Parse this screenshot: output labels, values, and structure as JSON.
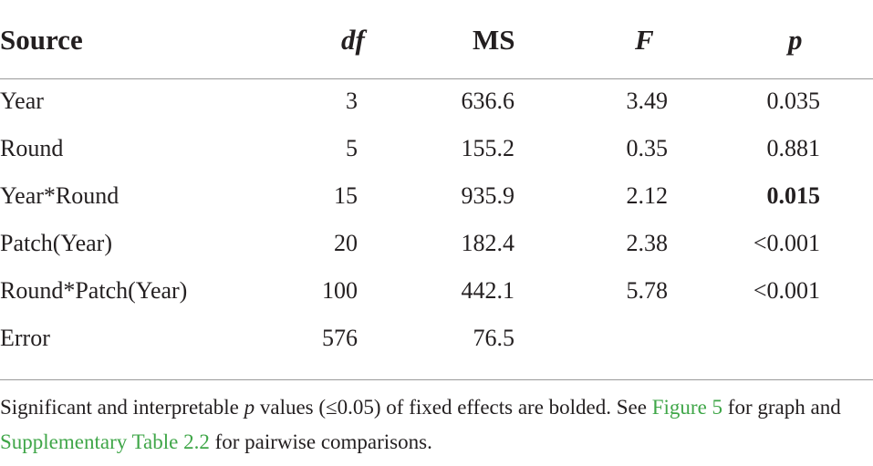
{
  "table": {
    "headers": {
      "source": "Source",
      "df": "df",
      "ms": "MS",
      "f": "F",
      "p": "p"
    },
    "rows": [
      {
        "source": "Year",
        "df": "3",
        "ms": "636.6",
        "f": "3.49",
        "p": "0.035",
        "p_bold": false
      },
      {
        "source": "Round",
        "df": "5",
        "ms": "155.2",
        "f": "0.35",
        "p": "0.881",
        "p_bold": false
      },
      {
        "source": "Year*Round",
        "df": "15",
        "ms": "935.9",
        "f": "2.12",
        "p": "0.015",
        "p_bold": true
      },
      {
        "source": "Patch(Year)",
        "df": "20",
        "ms": "182.4",
        "f": "2.38",
        "p": "<0.001",
        "p_bold": false
      },
      {
        "source": "Round*Patch(Year)",
        "df": "100",
        "ms": "442.1",
        "f": "5.78",
        "p": "<0.001",
        "p_bold": false
      },
      {
        "source": "Error",
        "df": "576",
        "ms": "76.5",
        "f": "",
        "p": "",
        "p_bold": false
      }
    ]
  },
  "footnote": {
    "part1": "Significant and interpretable ",
    "p_italic": "p",
    "part2": " values (≤0.05) of fixed effects are bolded. See ",
    "link1": "Figure 5",
    "part3": " for graph and ",
    "link2": "Supplementary Table 2.2",
    "part4": " for pairwise comparisons."
  },
  "colors": {
    "text": "#231f20",
    "link": "#3fa648",
    "rule": "#9a9a9a"
  }
}
